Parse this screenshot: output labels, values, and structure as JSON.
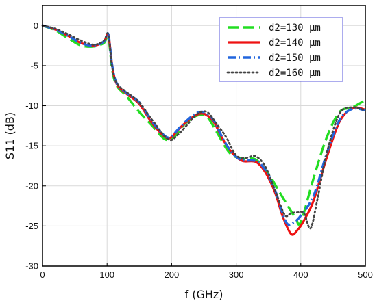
{
  "chart_data": {
    "type": "line",
    "xlabel": "f (GHz)",
    "ylabel": "S11 (dB)",
    "xlim": [
      0,
      500
    ],
    "ylim": [
      -30,
      2.5
    ],
    "xticks": [
      "0",
      "100",
      "200",
      "300",
      "400",
      "500"
    ],
    "yticks": [
      "0",
      "-5",
      "-10",
      "-15",
      "-20",
      "-25",
      "-30"
    ],
    "grid": true,
    "legend_position": "top-right",
    "series": [
      {
        "name": "d2=130 μm",
        "color": "#22dd22",
        "dash": "long-dash",
        "x": [
          0,
          20,
          40,
          60,
          80,
          95,
          102,
          108,
          115,
          130,
          150,
          170,
          190,
          205,
          220,
          240,
          255,
          270,
          290,
          310,
          330,
          350,
          365,
          380,
          392,
          400,
          420,
          440,
          460,
          480,
          500
        ],
        "y": [
          0,
          -0.6,
          -1.6,
          -2.5,
          -2.6,
          -2.2,
          -1.5,
          -5.5,
          -7.5,
          -8.8,
          -10.8,
          -12.5,
          -14.2,
          -13.8,
          -12.3,
          -11.2,
          -11.4,
          -13.3,
          -15.9,
          -16.6,
          -16.7,
          -18.5,
          -20.5,
          -22.5,
          -24.0,
          -24.5,
          -19.0,
          -14.0,
          -10.8,
          -10.2,
          -9.3
        ]
      },
      {
        "name": "d2=140 μm",
        "color": "#ee1111",
        "dash": "solid",
        "x": [
          0,
          20,
          40,
          60,
          80,
          95,
          102,
          108,
          115,
          130,
          150,
          170,
          190,
          200,
          215,
          235,
          250,
          265,
          280,
          295,
          310,
          330,
          345,
          360,
          372,
          385,
          395,
          405,
          420,
          440,
          460,
          480,
          500
        ],
        "y": [
          0,
          -0.5,
          -1.3,
          -2.2,
          -2.5,
          -2.0,
          -1.2,
          -5.0,
          -7.3,
          -8.5,
          -9.8,
          -12.2,
          -13.9,
          -13.9,
          -12.6,
          -11.3,
          -11.0,
          -12.0,
          -14.3,
          -16.0,
          -16.9,
          -17.0,
          -18.3,
          -20.8,
          -23.8,
          -26.0,
          -25.5,
          -24.3,
          -21.8,
          -16.5,
          -12.0,
          -10.3,
          -10.5
        ]
      },
      {
        "name": "d2=150 μm",
        "color": "#2266dd",
        "dash": "dash-dot",
        "x": [
          0,
          20,
          40,
          60,
          80,
          95,
          102,
          108,
          115,
          130,
          150,
          170,
          190,
          200,
          215,
          235,
          250,
          265,
          280,
          295,
          310,
          330,
          345,
          360,
          372,
          380,
          390,
          400,
          420,
          440,
          460,
          480,
          500
        ],
        "y": [
          0,
          -0.5,
          -1.3,
          -2.2,
          -2.5,
          -2.0,
          -1.1,
          -5.0,
          -7.2,
          -8.4,
          -9.6,
          -12.0,
          -13.8,
          -13.8,
          -12.5,
          -11.1,
          -10.8,
          -11.8,
          -14.2,
          -16.0,
          -16.8,
          -16.9,
          -18.0,
          -20.5,
          -23.5,
          -24.8,
          -24.5,
          -23.7,
          -21.2,
          -16.0,
          -11.8,
          -10.4,
          -10.6
        ]
      },
      {
        "name": "d2=160 μm",
        "color": "#444444",
        "dash": "dotted",
        "x": [
          0,
          20,
          40,
          60,
          80,
          95,
          102,
          108,
          115,
          130,
          150,
          170,
          195,
          210,
          225,
          240,
          255,
          270,
          285,
          300,
          315,
          330,
          345,
          360,
          375,
          385,
          395,
          405,
          415,
          425,
          440,
          460,
          480,
          500
        ],
        "y": [
          0,
          -0.4,
          -1.1,
          -1.9,
          -2.4,
          -1.9,
          -1.1,
          -5.2,
          -7.2,
          -8.3,
          -9.6,
          -11.8,
          -14.2,
          -13.6,
          -12.3,
          -11.0,
          -10.8,
          -12.3,
          -14.0,
          -16.2,
          -16.5,
          -16.3,
          -17.6,
          -20.5,
          -23.6,
          -23.4,
          -23.3,
          -23.4,
          -25.3,
          -22.0,
          -16.0,
          -11.0,
          -10.2,
          -10.6
        ]
      }
    ]
  }
}
